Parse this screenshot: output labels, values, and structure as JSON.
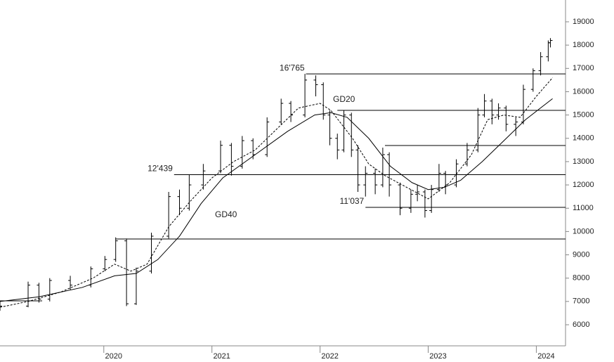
{
  "chart_data": {
    "type": "ohlc",
    "color": "#000000",
    "x": [
      2019.04,
      2019.3,
      2019.4,
      2019.5,
      2019.69,
      2019.88,
      2020.01,
      2020.11,
      2020.21,
      2020.3,
      2020.44,
      2020.6,
      2020.7,
      2020.79,
      2020.92,
      2021.08,
      2021.18,
      2021.28,
      2021.38,
      2021.51,
      2021.64,
      2021.73,
      2021.86,
      2021.96,
      2022.03,
      2022.09,
      2022.16,
      2022.22,
      2022.29,
      2022.35,
      2022.42,
      2022.51,
      2022.58,
      2022.64,
      2022.74,
      2022.84,
      2022.9,
      2022.97,
      2023.03,
      2023.1,
      2023.16,
      2023.26,
      2023.36,
      2023.46,
      2023.52,
      2023.59,
      2023.65,
      2023.72,
      2023.81,
      2023.88,
      2023.97,
      2024.04,
      2024.11,
      2024.13
    ],
    "open": [
      6700,
      6800,
      7700,
      7100,
      7900,
      7700,
      8400,
      8800,
      9600,
      6900,
      8300,
      9800,
      11500,
      11000,
      12000,
      12600,
      13700,
      12800,
      13900,
      13300,
      14700,
      15500,
      15000,
      16500,
      16300,
      15000,
      14000,
      13500,
      15000,
      13500,
      12000,
      12500,
      12000,
      13300,
      12000,
      11000,
      11600,
      11700,
      10900,
      11800,
      12500,
      12000,
      12900,
      13500,
      15000,
      15600,
      15000,
      15300,
      14600,
      14700,
      16100,
      16900,
      17500,
      18100
    ],
    "high": [
      7000,
      7850,
      7800,
      8000,
      8100,
      8500,
      8950,
      9750,
      9700,
      8450,
      9950,
      11700,
      11800,
      12439,
      12900,
      13900,
      13800,
      14100,
      14000,
      14900,
      15700,
      15600,
      16765,
      16700,
      16400,
      15200,
      14200,
      15200,
      15100,
      13700,
      12800,
      12700,
      13600,
      13400,
      12100,
      11800,
      12000,
      11800,
      12000,
      12900,
      12600,
      13100,
      13800,
      15300,
      15900,
      15700,
      15500,
      15400,
      14900,
      16300,
      17000,
      17700,
      18200,
      18300
    ],
    "low": [
      6600,
      6750,
      6950,
      7000,
      7500,
      7600,
      8300,
      8700,
      6800,
      6850,
      8200,
      9700,
      10700,
      10900,
      11800,
      12500,
      12400,
      12700,
      13100,
      13200,
      14600,
      14700,
      14900,
      15800,
      14800,
      13700,
      13100,
      13400,
      13200,
      11700,
      11500,
      11600,
      11900,
      11500,
      10700,
      10800,
      11300,
      10600,
      10800,
      11700,
      11600,
      11900,
      12800,
      13400,
      14900,
      14600,
      14800,
      14300,
      14100,
      14600,
      16000,
      16700,
      17300,
      17900
    ],
    "close": [
      6800,
      7700,
      7100,
      7900,
      7700,
      8400,
      8800,
      9600,
      6900,
      8300,
      9800,
      11500,
      11000,
      12000,
      12600,
      13700,
      12800,
      13900,
      13300,
      14700,
      15500,
      15000,
      16500,
      16300,
      15000,
      14000,
      13500,
      15000,
      13500,
      12000,
      12500,
      12000,
      13300,
      12000,
      11000,
      11600,
      11700,
      10900,
      11800,
      12500,
      12000,
      12900,
      13500,
      15000,
      15600,
      15000,
      15300,
      14600,
      14700,
      16100,
      16900,
      17500,
      18100,
      18200
    ],
    "series": [
      {
        "name": "GD20",
        "color": "#000000",
        "dash": true,
        "x": [
          2019.04,
          2019.3,
          2019.6,
          2019.9,
          2020.1,
          2020.25,
          2020.4,
          2020.6,
          2020.8,
          2021.0,
          2021.2,
          2021.4,
          2021.6,
          2021.8,
          2022.0,
          2022.1,
          2022.3,
          2022.45,
          2022.6,
          2022.8,
          2023.0,
          2023.2,
          2023.4,
          2023.55,
          2023.7,
          2023.85,
          2024.0,
          2024.15
        ],
        "values": [
          6750,
          7000,
          7400,
          8000,
          8600,
          8300,
          8600,
          10200,
          11300,
          12300,
          13000,
          13500,
          14400,
          15300,
          15500,
          15200,
          14000,
          12900,
          12400,
          11900,
          11400,
          12100,
          13300,
          14800,
          15000,
          14900,
          15800,
          16600
        ]
      },
      {
        "name": "GD40",
        "color": "#000000",
        "dash": false,
        "x": [
          2019.04,
          2019.4,
          2019.8,
          2020.1,
          2020.3,
          2020.5,
          2020.7,
          2020.9,
          2021.1,
          2021.4,
          2021.7,
          2021.95,
          2022.1,
          2022.25,
          2022.45,
          2022.65,
          2022.85,
          2023.0,
          2023.15,
          2023.3,
          2023.5,
          2023.7,
          2023.9,
          2024.15
        ],
        "values": [
          7000,
          7200,
          7600,
          8100,
          8200,
          8800,
          9800,
          11200,
          12300,
          13300,
          14300,
          15000,
          15100,
          14900,
          14000,
          12800,
          12100,
          11800,
          11900,
          12200,
          13000,
          13900,
          14800,
          15700
        ]
      }
    ],
    "levels": [
      {
        "value": 16765,
        "label": "16'765",
        "from": 2021.87
      },
      {
        "value": 15200,
        "from": 2022.16
      },
      {
        "value": 13690,
        "from": 2022.6
      },
      {
        "value": 12439,
        "label": "12'439",
        "from": 2020.65
      },
      {
        "value": 11037,
        "label": "11'037",
        "from": 2022.42
      },
      {
        "value": 9680,
        "from": 2020.11
      },
      {
        "value": 7025,
        "from": 2019.04,
        "to": 2019.43
      }
    ],
    "xlim": [
      2019.04,
      2024.27
    ],
    "xticks": [
      2020,
      2021,
      2022,
      2023,
      2024
    ],
    "ylim": [
      5095,
      19935
    ],
    "yticks": [
      6000,
      7000,
      8000,
      9000,
      10000,
      11000,
      12000,
      13000,
      14000,
      15000,
      16000,
      17000,
      18000,
      19000
    ],
    "grid": false
  }
}
